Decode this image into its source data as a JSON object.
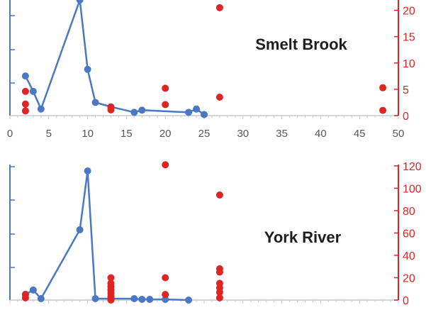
{
  "colors": {
    "blue": "#4a78c2",
    "red": "#e02424",
    "axis": "#c8c8c8",
    "title": "#1e1e1e",
    "tick": "#555555"
  },
  "chart_data": [
    {
      "type": "scatter",
      "title": "Smelt Brook",
      "xlim": [
        0,
        50
      ],
      "x_ticks": [
        "0",
        "5",
        "10",
        "15",
        "20",
        "25",
        "30",
        "35",
        "40",
        "45",
        "50"
      ],
      "y2_ticks": [
        "0",
        "5",
        "10",
        "15",
        "20"
      ],
      "y2_lim": [
        0,
        22.5
      ],
      "blue_series": {
        "x": [
          2,
          3,
          4,
          9,
          10,
          11,
          13,
          16,
          17,
          23,
          24,
          25
        ],
        "y": [
          0.36,
          0.22,
          0.06,
          1.05,
          0.42,
          0.12,
          0.08,
          0.03,
          0.05,
          0.03,
          0.06,
          0.01
        ]
      },
      "red_series": {
        "x": [
          2,
          2,
          2,
          13,
          13,
          20,
          20,
          27,
          27,
          48,
          48
        ],
        "y": [
          4.6,
          2.2,
          0.9,
          1.6,
          1.1,
          5.2,
          2.1,
          20.5,
          3.5,
          5.3,
          1.0
        ]
      }
    },
    {
      "type": "scatter",
      "title": "York River",
      "xlim": [
        0,
        50
      ],
      "x_ticks": [],
      "y2_ticks": [
        "0",
        "20",
        "40",
        "60",
        "80",
        "100",
        "120"
      ],
      "y2_lim": [
        0,
        125
      ],
      "blue_series": {
        "x": [
          2,
          3,
          4,
          9,
          10,
          11,
          13,
          16,
          17,
          18,
          20,
          23
        ],
        "y": [
          0.08,
          0.14,
          0.02,
          0.98,
          1.8,
          0.02,
          0.02,
          0.02,
          0.01,
          0.01,
          0.01,
          0.0
        ]
      },
      "red_series": {
        "x": [
          2,
          2,
          13,
          13,
          13,
          13,
          13,
          13,
          13,
          13,
          20,
          20,
          20,
          27,
          27,
          27,
          27,
          27,
          27,
          27
        ],
        "y": [
          5,
          2,
          20,
          15,
          12,
          9,
          6,
          3,
          1,
          0,
          121,
          20,
          5,
          94,
          28,
          25,
          15,
          11,
          7,
          2
        ]
      }
    }
  ]
}
